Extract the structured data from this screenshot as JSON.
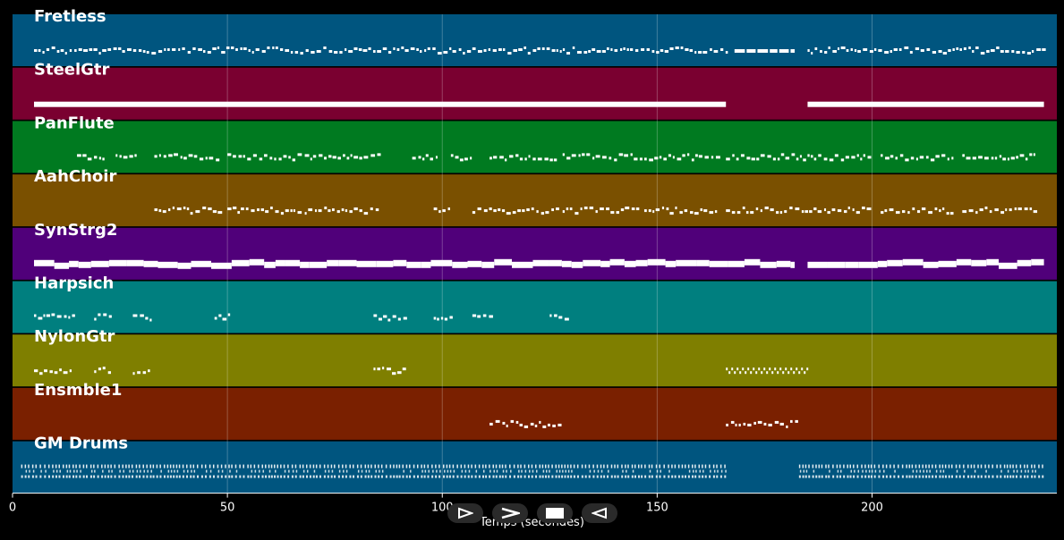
{
  "xaxis": {
    "label": "Temps (secondes)",
    "range": [
      0,
      243
    ],
    "ticks": [
      0,
      50,
      100,
      150,
      200
    ]
  },
  "tracks": [
    {
      "name": "Fretless",
      "color": "#00557f",
      "segments": [
        [
          5,
          166,
          "dense"
        ],
        [
          168,
          182,
          "long"
        ],
        [
          185,
          240,
          "dense"
        ]
      ]
    },
    {
      "name": "SteelGtr",
      "color": "#7a0030",
      "segments": [
        [
          5,
          166,
          "solid"
        ],
        [
          185,
          240,
          "solid"
        ]
      ]
    },
    {
      "name": "PanFlute",
      "color": "#007a20",
      "segments": [
        [
          15,
          21,
          "dense"
        ],
        [
          24,
          29,
          "dense"
        ],
        [
          33,
          48,
          "dense"
        ],
        [
          50,
          67,
          "dense"
        ],
        [
          68,
          85,
          "dense"
        ],
        [
          93,
          99,
          "dense"
        ],
        [
          102,
          107,
          "dense"
        ],
        [
          111,
          127,
          "dense"
        ],
        [
          128,
          146,
          "dense"
        ],
        [
          147,
          164,
          "dense"
        ],
        [
          166,
          200,
          "dense"
        ],
        [
          202,
          219,
          "dense"
        ],
        [
          221,
          238,
          "dense"
        ]
      ]
    },
    {
      "name": "AahChoir",
      "color": "#7a5000",
      "segments": [
        [
          33,
          48,
          "dense"
        ],
        [
          50,
          67,
          "dense"
        ],
        [
          68,
          85,
          "dense"
        ],
        [
          98,
          102,
          "dense"
        ],
        [
          107,
          127,
          "dense"
        ],
        [
          128,
          146,
          "dense"
        ],
        [
          147,
          164,
          "dense"
        ],
        [
          166,
          200,
          "dense"
        ],
        [
          202,
          219,
          "dense"
        ],
        [
          221,
          238,
          "dense"
        ]
      ]
    },
    {
      "name": "SynStrg2",
      "color": "#50007a",
      "segments": [
        [
          5,
          182,
          "thick"
        ],
        [
          185,
          240,
          "thick"
        ]
      ]
    },
    {
      "name": "Harpsich",
      "color": "#007f7f",
      "segments": [
        [
          5,
          14,
          "dense"
        ],
        [
          19,
          23,
          "dense"
        ],
        [
          28,
          32,
          "dense"
        ],
        [
          47,
          51,
          "dense"
        ],
        [
          84,
          92,
          "dense"
        ],
        [
          98,
          102,
          "dense"
        ],
        [
          107,
          111,
          "dense"
        ],
        [
          125,
          129,
          "dense"
        ]
      ]
    },
    {
      "name": "NylonGtr",
      "color": "#7f7f00",
      "segments": [
        [
          5,
          14,
          "dense"
        ],
        [
          19,
          23,
          "dense"
        ],
        [
          28,
          32,
          "dense"
        ],
        [
          84,
          92,
          "dense"
        ],
        [
          166,
          185,
          "wave"
        ]
      ]
    },
    {
      "name": "Ensmble1",
      "color": "#7a2000",
      "segments": [
        [
          111,
          127,
          "dense"
        ],
        [
          166,
          183,
          "dense"
        ]
      ]
    },
    {
      "name": "GM Drums",
      "color": "#00557f",
      "segments": [
        [
          2,
          166,
          "drums"
        ],
        [
          183,
          240,
          "drums"
        ]
      ]
    }
  ],
  "controls": [
    {
      "name": "play",
      "icon": "play-icon"
    },
    {
      "name": "forward",
      "icon": "forward-icon"
    },
    {
      "name": "stop",
      "icon": "stop-icon"
    },
    {
      "name": "rewind",
      "icon": "rewind-icon"
    }
  ]
}
